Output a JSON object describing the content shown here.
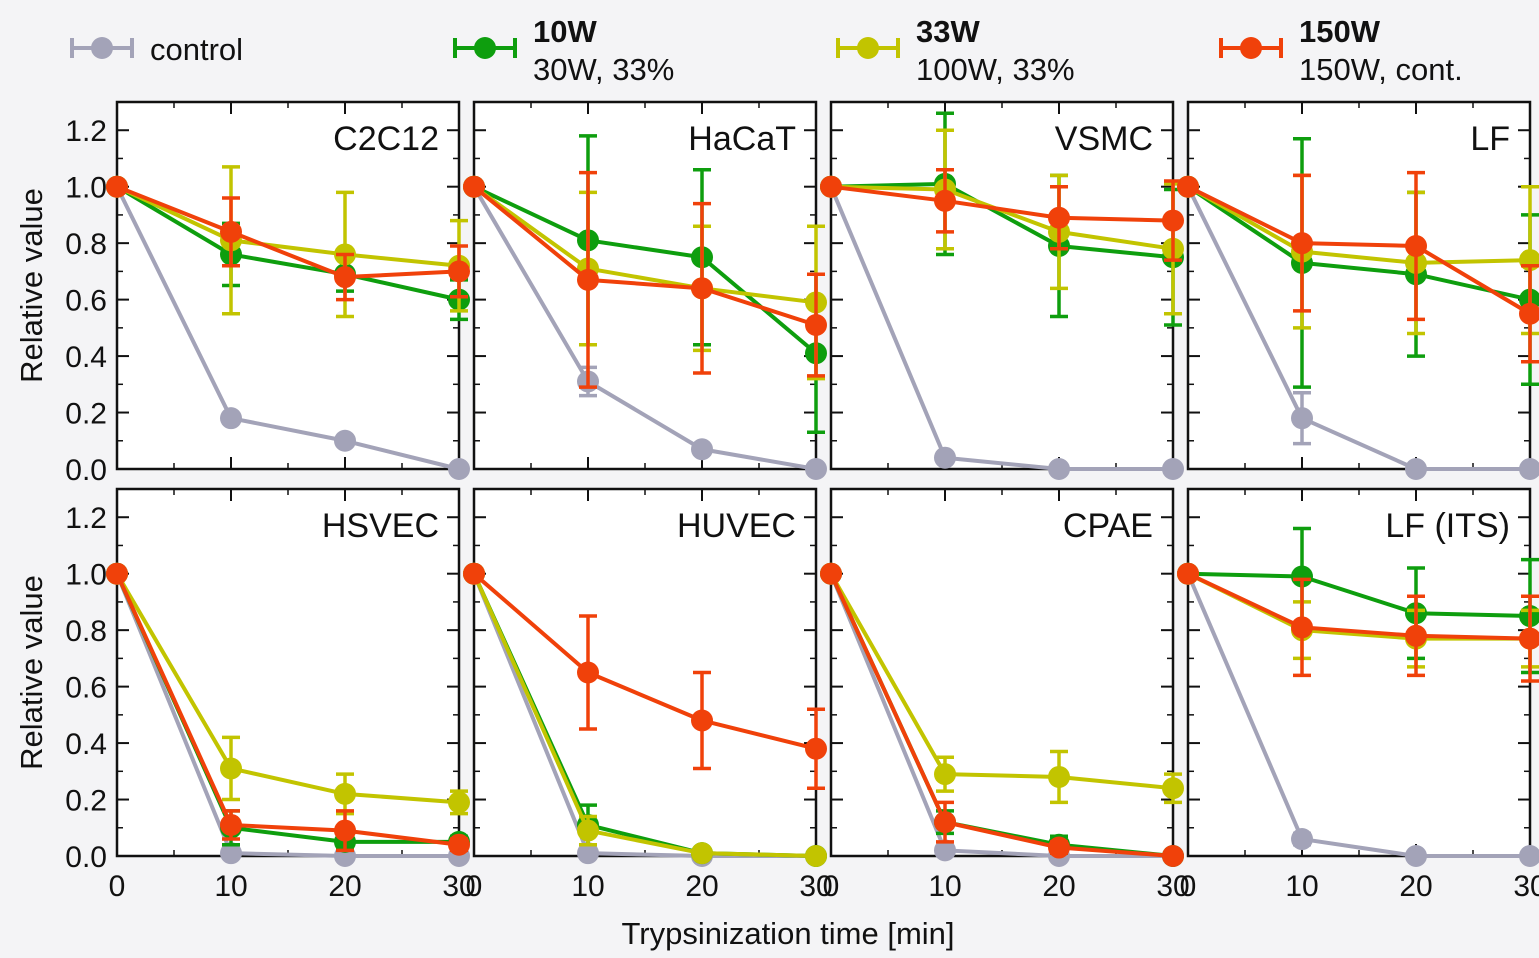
{
  "chart_data": {
    "type": "line",
    "x": [
      0,
      10,
      20,
      30
    ],
    "xlabel": "Trypsinization time [min]",
    "ylabel": "Relative value",
    "ylim": [
      0,
      1.3
    ],
    "xlim": [
      0,
      30
    ],
    "xticks": [
      "0",
      "10",
      "20",
      "30"
    ],
    "yticks": [
      "0.0",
      "0.2",
      "0.4",
      "0.6",
      "0.8",
      "1.0",
      "1.2"
    ],
    "legend": [
      {
        "key": "control",
        "label": "control",
        "sub": "",
        "bold": false,
        "color": "#a3a3b8"
      },
      {
        "key": "w10",
        "label": "10W",
        "sub": "30W, 33%",
        "bold": true,
        "color": "#0e9e0e"
      },
      {
        "key": "w33",
        "label": "33W",
        "sub": "100W, 33%",
        "bold": true,
        "color": "#c2c400"
      },
      {
        "key": "w150",
        "label": "150W",
        "sub": "150W, cont.",
        "bold": true,
        "color": "#f0410a"
      }
    ],
    "panels": [
      {
        "title": "C2C12",
        "series": [
          {
            "key": "control",
            "values": [
              1.0,
              0.18,
              0.1,
              0.0
            ],
            "errors": [
              0,
              0,
              0,
              0
            ]
          },
          {
            "key": "w10",
            "values": [
              1.0,
              0.76,
              0.69,
              0.6
            ],
            "errors": [
              0,
              0.11,
              0.06,
              0.07
            ]
          },
          {
            "key": "w33",
            "values": [
              1.0,
              0.81,
              0.76,
              0.72
            ],
            "errors": [
              0,
              0.26,
              0.22,
              0.16
            ]
          },
          {
            "key": "w150",
            "values": [
              1.0,
              0.84,
              0.68,
              0.7
            ],
            "errors": [
              0,
              0.12,
              0.08,
              0.09
            ]
          }
        ]
      },
      {
        "title": "HaCaT",
        "series": [
          {
            "key": "control",
            "values": [
              1.0,
              0.31,
              0.07,
              0.0
            ],
            "errors": [
              0,
              0.05,
              0,
              0
            ]
          },
          {
            "key": "w10",
            "values": [
              1.0,
              0.81,
              0.75,
              0.41
            ],
            "errors": [
              0,
              0.37,
              0.31,
              0.28
            ]
          },
          {
            "key": "w33",
            "values": [
              1.0,
              0.71,
              0.64,
              0.59
            ],
            "errors": [
              0,
              0.27,
              0.22,
              0.27
            ]
          },
          {
            "key": "w150",
            "values": [
              1.0,
              0.67,
              0.64,
              0.51
            ],
            "errors": [
              0,
              0.38,
              0.3,
              0.18
            ]
          }
        ]
      },
      {
        "title": "VSMC",
        "series": [
          {
            "key": "control",
            "values": [
              1.0,
              0.04,
              0.0,
              0.0
            ],
            "errors": [
              0,
              0,
              0,
              0
            ]
          },
          {
            "key": "w10",
            "values": [
              1.0,
              1.01,
              0.79,
              0.75
            ],
            "errors": [
              0,
              0.25,
              0.25,
              0.24
            ]
          },
          {
            "key": "w33",
            "values": [
              1.0,
              0.99,
              0.84,
              0.78
            ],
            "errors": [
              0,
              0.21,
              0.2,
              0.23
            ]
          },
          {
            "key": "w150",
            "values": [
              1.0,
              0.95,
              0.89,
              0.88
            ],
            "errors": [
              0,
              0.11,
              0.11,
              0.14
            ]
          }
        ]
      },
      {
        "title": "LF",
        "series": [
          {
            "key": "control",
            "values": [
              1.0,
              0.18,
              0.0,
              0.0
            ],
            "errors": [
              0,
              0.09,
              0,
              0
            ]
          },
          {
            "key": "w10",
            "values": [
              1.0,
              0.73,
              0.69,
              0.6
            ],
            "errors": [
              0,
              0.44,
              0.29,
              0.3
            ]
          },
          {
            "key": "w33",
            "values": [
              1.0,
              0.77,
              0.73,
              0.74
            ],
            "errors": [
              0,
              0.27,
              0.25,
              0.26
            ]
          },
          {
            "key": "w150",
            "values": [
              1.0,
              0.8,
              0.79,
              0.55
            ],
            "errors": [
              0,
              0.24,
              0.26,
              0.17
            ]
          }
        ]
      },
      {
        "title": "HSVEC",
        "series": [
          {
            "key": "control",
            "values": [
              1.0,
              0.01,
              0.0,
              0.0
            ],
            "errors": [
              0,
              0,
              0,
              0
            ]
          },
          {
            "key": "w10",
            "values": [
              1.0,
              0.1,
              0.05,
              0.05
            ],
            "errors": [
              0,
              0.06,
              0.02,
              0.02
            ]
          },
          {
            "key": "w33",
            "values": [
              1.0,
              0.31,
              0.22,
              0.19
            ],
            "errors": [
              0,
              0.11,
              0.07,
              0.04
            ]
          },
          {
            "key": "w150",
            "values": [
              1.0,
              0.11,
              0.09,
              0.04
            ],
            "errors": [
              0,
              0.05,
              0.07,
              0.02
            ]
          }
        ]
      },
      {
        "title": "HUVEC",
        "series": [
          {
            "key": "control",
            "values": [
              1.0,
              0.01,
              0.0,
              0.0
            ],
            "errors": [
              0,
              0,
              0,
              0
            ]
          },
          {
            "key": "w10",
            "values": [
              1.0,
              0.11,
              0.01,
              0.0
            ],
            "errors": [
              0,
              0.07,
              0.01,
              0
            ]
          },
          {
            "key": "w33",
            "values": [
              1.0,
              0.09,
              0.01,
              0.0
            ],
            "errors": [
              0,
              0.05,
              0.01,
              0
            ]
          },
          {
            "key": "w150",
            "values": [
              1.0,
              0.65,
              0.48,
              0.38
            ],
            "errors": [
              0,
              0.2,
              0.17,
              0.14
            ]
          }
        ]
      },
      {
        "title": "CPAE",
        "series": [
          {
            "key": "control",
            "values": [
              1.0,
              0.02,
              0.0,
              0.0
            ],
            "errors": [
              0,
              0,
              0,
              0
            ]
          },
          {
            "key": "w10",
            "values": [
              1.0,
              0.12,
              0.04,
              0.0
            ],
            "errors": [
              0,
              0.04,
              0.03,
              0
            ]
          },
          {
            "key": "w33",
            "values": [
              1.0,
              0.29,
              0.28,
              0.24
            ],
            "errors": [
              0,
              0.06,
              0.09,
              0.05
            ]
          },
          {
            "key": "w150",
            "values": [
              1.0,
              0.12,
              0.03,
              0.0
            ],
            "errors": [
              0,
              0.07,
              0.02,
              0
            ]
          }
        ]
      },
      {
        "title": "LF (ITS)",
        "series": [
          {
            "key": "control",
            "values": [
              1.0,
              0.06,
              0.0,
              0.0
            ],
            "errors": [
              0,
              0.02,
              0,
              0
            ]
          },
          {
            "key": "w10",
            "values": [
              1.0,
              0.99,
              0.86,
              0.85
            ],
            "errors": [
              0,
              0.17,
              0.16,
              0.2
            ]
          },
          {
            "key": "w33",
            "values": [
              1.0,
              0.8,
              0.77,
              0.77
            ],
            "errors": [
              0,
              0.1,
              0.1,
              0.1
            ]
          },
          {
            "key": "w150",
            "values": [
              1.0,
              0.81,
              0.78,
              0.77
            ],
            "errors": [
              0,
              0.17,
              0.14,
              0.15
            ]
          }
        ]
      }
    ]
  }
}
